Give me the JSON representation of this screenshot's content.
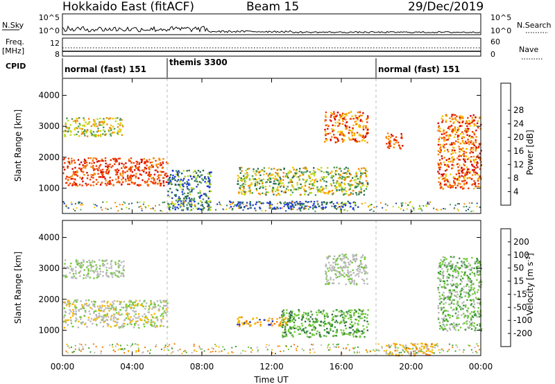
{
  "header": {
    "radar": "Hokkaido East (fitACF)",
    "beam": "Beam 15",
    "date": "29/Dec/2019"
  },
  "strips": {
    "nsky": {
      "label": "N.Sky",
      "ticks": [
        "10^5",
        "10^0"
      ]
    },
    "nsearch": {
      "label": "N.Search",
      "ticks": [
        "10^5",
        "10^0"
      ]
    },
    "freq": {
      "label_line1": "Freq.",
      "label_line2": "[MHz]",
      "ticks": [
        "12",
        "8"
      ]
    },
    "nave": {
      "label": "Nave",
      "ticks": [
        "60",
        "0"
      ]
    },
    "cpid": {
      "label": "CPID",
      "segments": [
        {
          "name": "normal (fast) 151",
          "start_hour": 0,
          "end_hour": 6
        },
        {
          "name": "themis 3300",
          "start_hour": 6,
          "end_hour": 18
        },
        {
          "name": "normal (fast) 151",
          "start_hour": 18,
          "end_hour": 24
        }
      ]
    }
  },
  "chart_data": [
    {
      "type": "heatmap",
      "title": "",
      "xlabel": "",
      "ylabel": "Slant Range [km]",
      "x_ticks": [
        "00:00",
        "04:00",
        "08:00",
        "12:00",
        "16:00",
        "20:00",
        "00:00"
      ],
      "x_range_hours": [
        0,
        24
      ],
      "y_ticks": [
        1000,
        2000,
        3000,
        4000
      ],
      "ylim": [
        180,
        4550
      ],
      "colorbar": {
        "label": "Power [dB]",
        "ticks": [
          4,
          8,
          12,
          16,
          20,
          24,
          28
        ],
        "range": [
          0,
          32
        ],
        "colors": [
          "#1a2bff",
          "#2046a8",
          "#2d6e4f",
          "#4c9a58",
          "#b6dc1e",
          "#f5c200",
          "#f58400",
          "#f03a00",
          "#d40000"
        ]
      },
      "features": [
        {
          "start_hour": 0.0,
          "end_hour": 6.0,
          "range_km": [
            1100,
            2000
          ],
          "level": "26-32 dB"
        },
        {
          "start_hour": 0.0,
          "end_hour": 3.5,
          "range_km": [
            2700,
            3300
          ],
          "level": "16-24 dB"
        },
        {
          "start_hour": 6.0,
          "end_hour": 8.5,
          "range_km": [
            300,
            1600
          ],
          "level": "4-16 dB"
        },
        {
          "start_hour": 9.5,
          "end_hour": 17.0,
          "range_km": [
            350,
            600
          ],
          "level": "4-12 dB"
        },
        {
          "start_hour": 10.0,
          "end_hour": 17.5,
          "range_km": [
            800,
            1700
          ],
          "level": "8-24 dB"
        },
        {
          "start_hour": 15.0,
          "end_hour": 17.5,
          "range_km": [
            2500,
            3500
          ],
          "level": "20-32 dB"
        },
        {
          "start_hour": 18.5,
          "end_hour": 19.5,
          "range_km": [
            2300,
            2800
          ],
          "level": "24-32 dB"
        },
        {
          "start_hour": 21.5,
          "end_hour": 24.0,
          "range_km": [
            1000,
            3400
          ],
          "level": "20-32 dB"
        }
      ]
    },
    {
      "type": "heatmap",
      "title": "",
      "xlabel": "Time UT",
      "ylabel": "Slant Range [km]",
      "x_ticks": [
        "00:00",
        "04:00",
        "08:00",
        "12:00",
        "16:00",
        "20:00",
        "00:00"
      ],
      "x_range_hours": [
        0,
        24
      ],
      "y_ticks": [
        1000,
        2000,
        3000,
        4000
      ],
      "ylim": [
        180,
        4550
      ],
      "colorbar": {
        "label_main": "Velocity [m s",
        "label_sup": "-1",
        "label_end": "]",
        "ticks": [
          "200",
          "100",
          "50",
          "15",
          "-15",
          "-50",
          "-100",
          "-200"
        ],
        "colors": [
          "#2230b0",
          "#2f6e45",
          "#3e9a36",
          "#72c93a",
          "#b8b8b8",
          "#f5b800",
          "#f57a00",
          "#ff3d00",
          "#e00000"
        ]
      },
      "features": [
        {
          "start_hour": 0.0,
          "end_hour": 6.0,
          "range_km": [
            1100,
            2000
          ],
          "level": "-15 to 15 m/s"
        },
        {
          "start_hour": 0.0,
          "end_hour": 3.5,
          "range_km": [
            2700,
            3300
          ],
          "level": "-15 to 15 m/s"
        },
        {
          "start_hour": 10.0,
          "end_hour": 13.0,
          "range_km": [
            1150,
            1450
          ],
          "level": "-50 to -100 m/s"
        },
        {
          "start_hour": 12.5,
          "end_hour": 17.5,
          "range_km": [
            800,
            1700
          ],
          "level": "15 to 100 m/s"
        },
        {
          "start_hour": 15.0,
          "end_hour": 17.5,
          "range_km": [
            2500,
            3500
          ],
          "level": "-15 to 15 m/s"
        },
        {
          "start_hour": 18.5,
          "end_hour": 21.5,
          "range_km": [
            200,
            600
          ],
          "level": "-15 to -100 m/s"
        },
        {
          "start_hour": 21.5,
          "end_hour": 24.0,
          "range_km": [
            1000,
            3400
          ],
          "level": "15 to 100 m/s"
        }
      ]
    }
  ]
}
